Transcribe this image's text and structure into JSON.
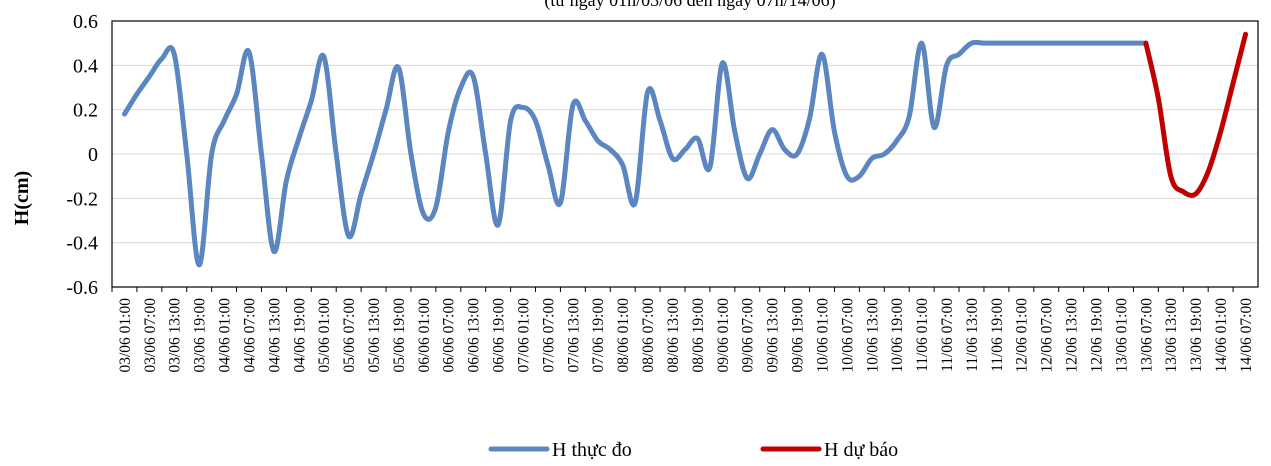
{
  "chart_data": {
    "type": "line",
    "title": "(từ ngày 01h/03/06 đến ngày 07h/14/06)",
    "xlabel": "",
    "ylabel": "H(cm)",
    "ylim": [
      -0.6,
      0.6
    ],
    "yticks": [
      "0.6",
      "0.4",
      "0.2",
      "0",
      "-0.2",
      "-0.4",
      "-0.6"
    ],
    "grid": true,
    "legend_position": "bottom",
    "x_tick_labels": [
      "03/06 01:00",
      "03/06 07:00",
      "03/06 13:00",
      "03/06 19:00",
      "04/06 01:00",
      "04/06 07:00",
      "04/06 13:00",
      "04/06 19:00",
      "05/06 01:00",
      "05/06 07:00",
      "05/06 13:00",
      "05/06 19:00",
      "06/06 01:00",
      "06/06 07:00",
      "06/06 13:00",
      "06/06 19:00",
      "07/06 01:00",
      "07/06 07:00",
      "07/06 13:00",
      "07/06 19:00",
      "08/06 01:00",
      "08/06 07:00",
      "08/06 13:00",
      "08/06 19:00",
      "09/06 01:00",
      "09/06 07:00",
      "09/06 13:00",
      "09/06 19:00",
      "10/06 01:00",
      "10/06 07:00",
      "10/06 13:00",
      "10/06 19:00",
      "11/06 01:00",
      "11/06 07:00",
      "11/06 13:00",
      "11/06 19:00",
      "12/06 01:00",
      "12/06 07:00",
      "12/06 13:00",
      "12/06 19:00",
      "13/06 01:00",
      "13/06 07:00",
      "13/06 13:00",
      "13/06 19:00",
      "14/06 01:00",
      "14/06 07:00"
    ],
    "series": [
      {
        "name": "H thực đo",
        "color": "#5B86C0",
        "x": [
          "03/06 01:00",
          "03/06 04:00",
          "03/06 07:00",
          "03/06 10:00",
          "03/06 13:00",
          "03/06 16:00",
          "03/06 19:00",
          "03/06 22:00",
          "04/06 01:00",
          "04/06 04:00",
          "04/06 07:00",
          "04/06 10:00",
          "04/06 13:00",
          "04/06 16:00",
          "04/06 19:00",
          "04/06 22:00",
          "05/06 01:00",
          "05/06 04:00",
          "05/06 07:00",
          "05/06 10:00",
          "05/06 13:00",
          "05/06 16:00",
          "05/06 19:00",
          "05/06 22:00",
          "06/06 01:00",
          "06/06 04:00",
          "06/06 07:00",
          "06/06 10:00",
          "06/06 13:00",
          "06/06 16:00",
          "06/06 19:00",
          "06/06 22:00",
          "07/06 01:00",
          "07/06 04:00",
          "07/06 07:00",
          "07/06 10:00",
          "07/06 13:00",
          "07/06 16:00",
          "07/06 19:00",
          "07/06 22:00",
          "08/06 01:00",
          "08/06 04:00",
          "08/06 07:00",
          "08/06 10:00",
          "08/06 13:00",
          "08/06 16:00",
          "08/06 19:00",
          "08/06 22:00",
          "09/06 01:00",
          "09/06 04:00",
          "09/06 07:00",
          "09/06 10:00",
          "09/06 13:00",
          "09/06 16:00",
          "09/06 19:00",
          "09/06 22:00",
          "10/06 01:00",
          "10/06 04:00",
          "10/06 07:00",
          "10/06 10:00",
          "10/06 13:00",
          "10/06 16:00",
          "10/06 19:00",
          "10/06 22:00",
          "11/06 01:00",
          "11/06 04:00",
          "11/06 07:00",
          "11/06 10:00",
          "11/06 13:00",
          "11/06 16:00",
          "11/06 19:00",
          "11/06 22:00",
          "12/06 01:00",
          "12/06 04:00",
          "12/06 07:00",
          "12/06 10:00",
          "12/06 13:00",
          "12/06 16:00",
          "12/06 19:00",
          "12/06 22:00",
          "13/06 01:00",
          "13/06 04:00",
          "13/06 07:00"
        ],
        "values": [
          0.18,
          0.27,
          0.35,
          0.43,
          0.45,
          0.0,
          -0.5,
          0.0,
          0.15,
          0.27,
          0.46,
          0.0,
          -0.44,
          -0.12,
          0.07,
          0.24,
          0.44,
          0.0,
          -0.37,
          -0.18,
          0.0,
          0.2,
          0.39,
          0.0,
          -0.27,
          -0.24,
          0.1,
          0.3,
          0.35,
          0.0,
          -0.32,
          0.15,
          0.21,
          0.15,
          -0.05,
          -0.22,
          0.22,
          0.15,
          0.06,
          0.02,
          -0.05,
          -0.22,
          0.28,
          0.15,
          -0.02,
          0.02,
          0.07,
          -0.06,
          0.41,
          0.1,
          -0.11,
          0.0,
          0.11,
          0.02,
          0.0,
          0.16,
          0.45,
          0.1,
          -0.1,
          -0.1,
          -0.02,
          0.0,
          0.06,
          0.17,
          0.5,
          0.12,
          0.4,
          0.45,
          0.5,
          0.5,
          0.5,
          0.5,
          0.5,
          0.5,
          0.5,
          0.5,
          0.5,
          0.5,
          0.5,
          0.5,
          0.5,
          0.5,
          0.5
        ]
      },
      {
        "name": "H dự báo",
        "color": "#C00000",
        "x": [
          "13/06 07:00",
          "13/06 10:00",
          "13/06 13:00",
          "13/06 16:00",
          "13/06 19:00",
          "13/06 22:00",
          "14/06 01:00",
          "14/06 04:00",
          "14/06 07:00"
        ],
        "values": [
          0.5,
          0.25,
          -0.1,
          -0.17,
          -0.18,
          -0.08,
          0.1,
          0.32,
          0.54
        ]
      }
    ]
  }
}
